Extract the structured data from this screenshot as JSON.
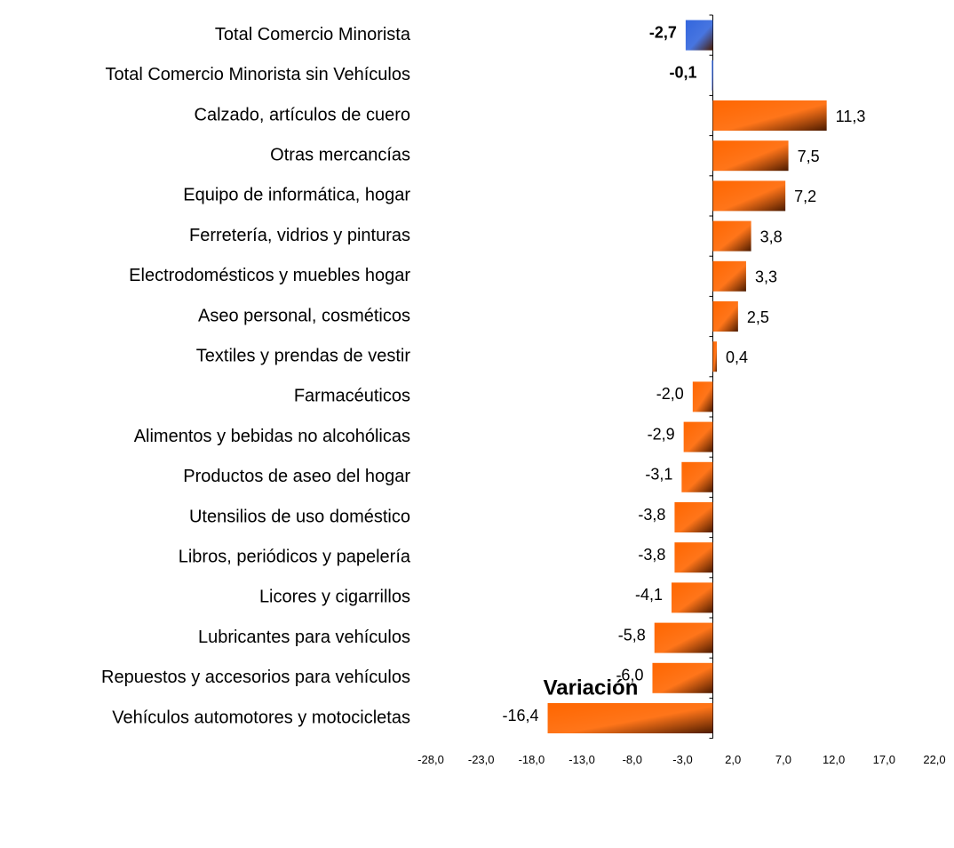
{
  "chart_data": {
    "type": "bar",
    "orientation": "horizontal",
    "x_axis_label": "Variación",
    "categories": [
      "Total Comercio Minorista",
      "Total Comercio Minorista sin Vehículos",
      "Calzado, artículos de cuero",
      "Otras mercancías",
      "Equipo de informática, hogar",
      "Ferretería, vidrios y pinturas",
      "Electrodomésticos y muebles hogar",
      "Aseo personal, cosméticos",
      "Textiles y prendas de vestir",
      "Farmacéuticos",
      "Alimentos y bebidas no alcohólicas",
      "Productos de aseo del  hogar",
      "Utensilios de uso doméstico",
      "Libros, periódicos y papelería",
      "Licores y cigarrillos",
      "Lubricantes para vehículos",
      "Repuestos y accesorios para vehículos",
      "Vehículos automotores y motocicletas"
    ],
    "values": [
      -2.7,
      -0.1,
      11.3,
      7.5,
      7.2,
      3.8,
      3.3,
      2.5,
      0.4,
      -2.0,
      -2.9,
      -3.1,
      -3.8,
      -3.8,
      -4.1,
      -5.8,
      -6.0,
      -16.4
    ],
    "value_labels": [
      "-2,7",
      "-0,1",
      "11,3",
      "7,5",
      "7,2",
      "3,8",
      "3,3",
      "2,5",
      "0,4",
      "-2,0",
      "-2,9",
      "-3,1",
      "-3,8",
      "-3,8",
      "-4,1",
      "-5,8",
      "-6,0",
      "-16,4"
    ],
    "colors": [
      "#3366dd",
      "#3366dd",
      "#ff6600",
      "#ff6600",
      "#ff6600",
      "#ff6600",
      "#ff6600",
      "#ff6600",
      "#ff6600",
      "#ff6600",
      "#ff6600",
      "#ff6600",
      "#ff6600",
      "#ff6600",
      "#ff6600",
      "#ff6600",
      "#ff6600",
      "#ff6600"
    ],
    "xlim": [
      -28,
      22
    ],
    "xticks": [
      {
        "value": -28,
        "label": "-28,0"
      },
      {
        "value": -23,
        "label": "-23,0"
      },
      {
        "value": -18,
        "label": "-18,0"
      },
      {
        "value": -13,
        "label": "-13,0"
      },
      {
        "value": -8,
        "label": "-8,0"
      },
      {
        "value": -3,
        "label": "-3,0"
      },
      {
        "value": 2,
        "label": "2,0"
      },
      {
        "value": 7,
        "label": "7,0"
      },
      {
        "value": 12,
        "label": "12,0"
      },
      {
        "value": 17,
        "label": "17,0"
      },
      {
        "value": 22,
        "label": "22,0"
      }
    ],
    "grid": false
  }
}
